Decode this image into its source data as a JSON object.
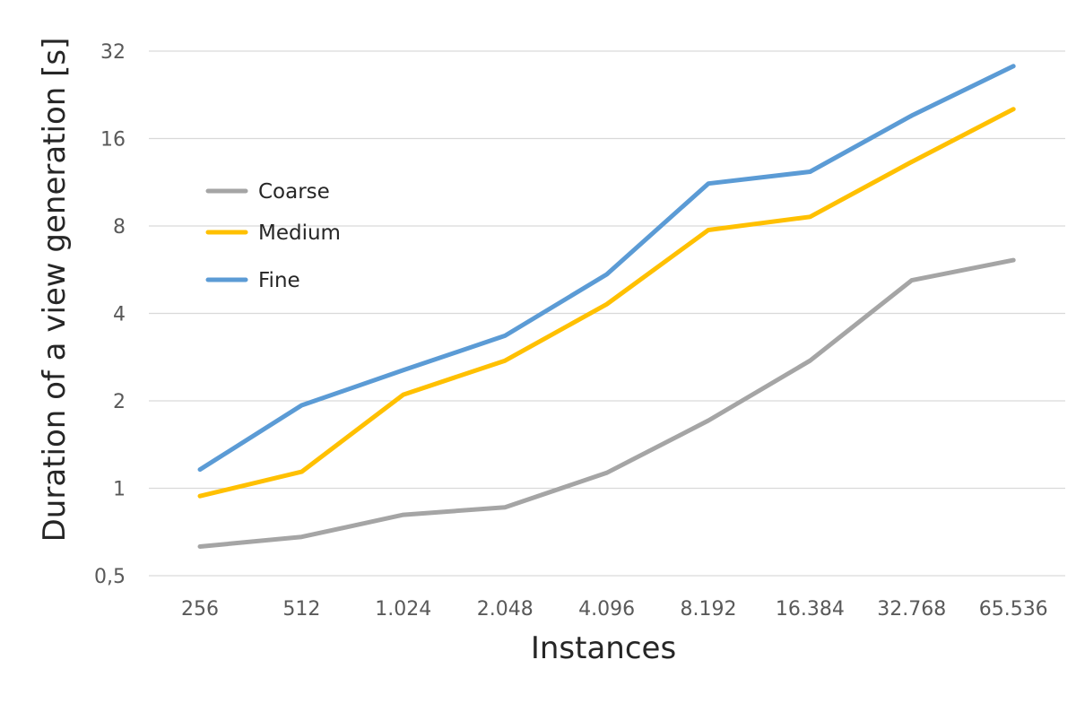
{
  "chart_data": {
    "type": "line",
    "title": "",
    "xlabel": "Instances",
    "ylabel": "Duration of a view generation [s]",
    "y_scale": "log2",
    "ylim": [
      0.5,
      32
    ],
    "y_ticks": [
      0.5,
      1,
      2,
      4,
      8,
      16,
      32
    ],
    "y_tick_labels": [
      "0,5",
      "1",
      "2",
      "4",
      "8",
      "16",
      "32"
    ],
    "categories": [
      "256",
      "512",
      "1.024",
      "2.048",
      "4.096",
      "8.192",
      "16.384",
      "32.768",
      "65.536"
    ],
    "grid": true,
    "legend_position": "upper-left inside plot",
    "series": [
      {
        "name": "Coarse",
        "color": "#a5a5a5",
        "values": [
          0.63,
          0.68,
          0.81,
          0.86,
          1.13,
          1.71,
          2.75,
          5.2,
          6.1
        ]
      },
      {
        "name": "Medium",
        "color": "#ffc000",
        "values": [
          0.94,
          1.14,
          2.1,
          2.75,
          4.3,
          7.75,
          8.6,
          13.3,
          20.2
        ]
      },
      {
        "name": "Fine",
        "color": "#5b9bd5",
        "values": [
          1.16,
          1.93,
          2.55,
          3.35,
          5.45,
          11.2,
          12.3,
          19.2,
          28.4
        ]
      }
    ]
  }
}
